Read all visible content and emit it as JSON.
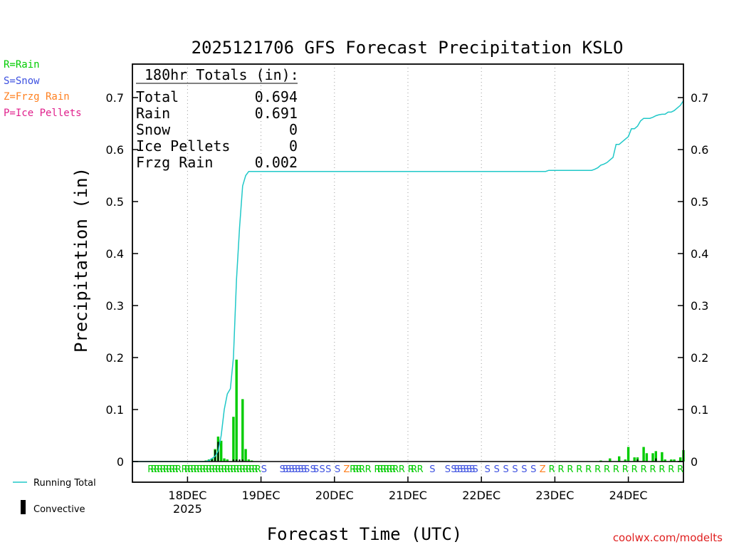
{
  "chart_data": {
    "type": "bar",
    "title": "2025121706 GFS Forecast Precipitation KSLO",
    "xlabel": "Forecast Time (UTC)",
    "ylabel": "Precipitation (in)",
    "ylim": [
      0,
      0.76
    ],
    "y_ticks": [
      "0",
      "0.1",
      "0.2",
      "0.3",
      "0.4",
      "0.5",
      "0.6",
      "0.7"
    ],
    "x_range_hours": [
      0,
      180
    ],
    "x_ticks": [
      {
        "hour": 18,
        "label": "18DEC",
        "sublabel": "2025"
      },
      {
        "hour": 42,
        "label": "19DEC",
        "sublabel": ""
      },
      {
        "hour": 66,
        "label": "20DEC",
        "sublabel": ""
      },
      {
        "hour": 90,
        "label": "21DEC",
        "sublabel": ""
      },
      {
        "hour": 114,
        "label": "22DEC",
        "sublabel": ""
      },
      {
        "hour": 138,
        "label": "23DEC",
        "sublabel": ""
      },
      {
        "hour": 162,
        "label": "24DEC",
        "sublabel": ""
      }
    ],
    "legend": {
      "types": [
        {
          "label": "R=Rain",
          "color": "#00cc00"
        },
        {
          "label": "S=Snow",
          "color": "#3c50e0"
        },
        {
          "label": "Z=Frzg Rain",
          "color": "#ff8020"
        },
        {
          "label": "P=Ice Pellets",
          "color": "#e0208c"
        }
      ],
      "running_total_label": "Running Total",
      "convective_label": "Convective"
    },
    "totals": {
      "heading": "180hr Totals (in):",
      "rows": [
        {
          "label": "Total",
          "value": "0.694"
        },
        {
          "label": "Rain",
          "value": "0.691"
        },
        {
          "label": "Snow",
          "value": "0"
        },
        {
          "label": "Ice Pellets",
          "value": "0"
        },
        {
          "label": "Frzg Rain",
          "value": "0.002"
        }
      ]
    },
    "precip_series": {
      "name": "3-hr precipitation",
      "color": "#00cc00",
      "hours": [
        24,
        25,
        26,
        27,
        28,
        29,
        30,
        31,
        33,
        34,
        36,
        37,
        38,
        39,
        161,
        164,
        167,
        170,
        173,
        176,
        179
      ],
      "values": [
        0.002,
        0.004,
        0.006,
        0.024,
        0.048,
        0.04,
        0.006,
        0.004,
        0.086,
        0.196,
        0.12,
        0.024,
        0.004,
        0.002,
        0.004,
        0.008,
        0.028,
        0.016,
        0.018,
        0.004,
        0.008
      ]
    },
    "late_bars": {
      "hours": [
        153,
        156,
        159,
        162,
        165,
        168,
        171,
        174,
        177,
        180
      ],
      "values": [
        0.002,
        0.006,
        0.01,
        0.028,
        0.008,
        0.016,
        0.02,
        0.004,
        0.004,
        0.022
      ]
    },
    "convective_series": {
      "name": "Convective",
      "color": "#000000",
      "hours": [
        26,
        27,
        28,
        33,
        34,
        35,
        36,
        165,
        171
      ],
      "values": [
        0.004,
        0.022,
        0.038,
        0.004,
        0.004,
        0.004,
        0.004,
        0.004,
        0.006
      ]
    },
    "running_total": {
      "name": "Running Total",
      "color": "#20c8c8",
      "hours": [
        0,
        24,
        25,
        26,
        27,
        28,
        29,
        30,
        31,
        32,
        33,
        34,
        35,
        36,
        37,
        38,
        42,
        66,
        90,
        114,
        135,
        136,
        150,
        151,
        152,
        153,
        154,
        155,
        156,
        157,
        158,
        159,
        160,
        161,
        162,
        163,
        164,
        165,
        166,
        167,
        168,
        169,
        170,
        171,
        172,
        173,
        174,
        175,
        176,
        177,
        178,
        179,
        180
      ],
      "values": [
        0,
        0,
        0.002,
        0.006,
        0.01,
        0.02,
        0.05,
        0.1,
        0.13,
        0.14,
        0.2,
        0.35,
        0.45,
        0.53,
        0.55,
        0.558,
        0.558,
        0.558,
        0.558,
        0.558,
        0.558,
        0.56,
        0.56,
        0.562,
        0.565,
        0.57,
        0.572,
        0.575,
        0.58,
        0.585,
        0.61,
        0.61,
        0.615,
        0.62,
        0.625,
        0.64,
        0.64,
        0.645,
        0.655,
        0.66,
        0.66,
        0.66,
        0.662,
        0.665,
        0.667,
        0.668,
        0.668,
        0.672,
        0.672,
        0.675,
        0.68,
        0.685,
        0.694
      ]
    },
    "ptype_markers": [
      {
        "hour": 6,
        "type": "R"
      },
      {
        "hour": 7,
        "type": "R"
      },
      {
        "hour": 8,
        "type": "R"
      },
      {
        "hour": 9,
        "type": "R"
      },
      {
        "hour": 10,
        "type": "R"
      },
      {
        "hour": 11,
        "type": "R"
      },
      {
        "hour": 12,
        "type": "R"
      },
      {
        "hour": 13,
        "type": "R"
      },
      {
        "hour": 14,
        "type": "R"
      },
      {
        "hour": 15,
        "type": "R"
      },
      {
        "hour": 17,
        "type": "R"
      },
      {
        "hour": 18,
        "type": "R"
      },
      {
        "hour": 19,
        "type": "R"
      },
      {
        "hour": 20,
        "type": "R"
      },
      {
        "hour": 21,
        "type": "R"
      },
      {
        "hour": 22,
        "type": "R"
      },
      {
        "hour": 23,
        "type": "R"
      },
      {
        "hour": 24,
        "type": "R"
      },
      {
        "hour": 25,
        "type": "R"
      },
      {
        "hour": 26,
        "type": "R"
      },
      {
        "hour": 27,
        "type": "R"
      },
      {
        "hour": 28,
        "type": "R"
      },
      {
        "hour": 29,
        "type": "R"
      },
      {
        "hour": 30,
        "type": "R"
      },
      {
        "hour": 31,
        "type": "R"
      },
      {
        "hour": 32,
        "type": "R"
      },
      {
        "hour": 33,
        "type": "R"
      },
      {
        "hour": 34,
        "type": "R"
      },
      {
        "hour": 35,
        "type": "R"
      },
      {
        "hour": 36,
        "type": "R"
      },
      {
        "hour": 37,
        "type": "R"
      },
      {
        "hour": 38,
        "type": "R"
      },
      {
        "hour": 39,
        "type": "R"
      },
      {
        "hour": 40,
        "type": "R"
      },
      {
        "hour": 41,
        "type": "R"
      },
      {
        "hour": 43,
        "type": "S"
      },
      {
        "hour": 49,
        "type": "S"
      },
      {
        "hour": 50,
        "type": "S"
      },
      {
        "hour": 51,
        "type": "S"
      },
      {
        "hour": 52,
        "type": "S"
      },
      {
        "hour": 53,
        "type": "S"
      },
      {
        "hour": 54,
        "type": "S"
      },
      {
        "hour": 55,
        "type": "S"
      },
      {
        "hour": 56,
        "type": "S"
      },
      {
        "hour": 57,
        "type": "S"
      },
      {
        "hour": 59,
        "type": "S"
      },
      {
        "hour": 60,
        "type": "S"
      },
      {
        "hour": 62,
        "type": "S"
      },
      {
        "hour": 64,
        "type": "S"
      },
      {
        "hour": 67,
        "type": "S"
      },
      {
        "hour": 70,
        "type": "Z"
      },
      {
        "hour": 72,
        "type": "R"
      },
      {
        "hour": 73,
        "type": "R"
      },
      {
        "hour": 74,
        "type": "R"
      },
      {
        "hour": 75,
        "type": "R"
      },
      {
        "hour": 77,
        "type": "R"
      },
      {
        "hour": 80,
        "type": "R"
      },
      {
        "hour": 81,
        "type": "R"
      },
      {
        "hour": 82,
        "type": "R"
      },
      {
        "hour": 83,
        "type": "R"
      },
      {
        "hour": 84,
        "type": "R"
      },
      {
        "hour": 85,
        "type": "R"
      },
      {
        "hour": 86,
        "type": "R"
      },
      {
        "hour": 88,
        "type": "R"
      },
      {
        "hour": 91,
        "type": "R"
      },
      {
        "hour": 92,
        "type": "R"
      },
      {
        "hour": 94,
        "type": "R"
      },
      {
        "hour": 98,
        "type": "S"
      },
      {
        "hour": 103,
        "type": "S"
      },
      {
        "hour": 105,
        "type": "S"
      },
      {
        "hour": 106,
        "type": "S"
      },
      {
        "hour": 107,
        "type": "S"
      },
      {
        "hour": 108,
        "type": "S"
      },
      {
        "hour": 109,
        "type": "S"
      },
      {
        "hour": 110,
        "type": "S"
      },
      {
        "hour": 111,
        "type": "S"
      },
      {
        "hour": 112,
        "type": "S"
      },
      {
        "hour": 116,
        "type": "S"
      },
      {
        "hour": 119,
        "type": "S"
      },
      {
        "hour": 122,
        "type": "S"
      },
      {
        "hour": 125,
        "type": "S"
      },
      {
        "hour": 128,
        "type": "S"
      },
      {
        "hour": 131,
        "type": "S"
      },
      {
        "hour": 134,
        "type": "Z"
      },
      {
        "hour": 137,
        "type": "R"
      },
      {
        "hour": 140,
        "type": "R"
      },
      {
        "hour": 143,
        "type": "R"
      },
      {
        "hour": 146,
        "type": "R"
      },
      {
        "hour": 149,
        "type": "R"
      },
      {
        "hour": 152,
        "type": "R"
      },
      {
        "hour": 155,
        "type": "R"
      },
      {
        "hour": 158,
        "type": "R"
      },
      {
        "hour": 161,
        "type": "R"
      },
      {
        "hour": 164,
        "type": "R"
      },
      {
        "hour": 167,
        "type": "R"
      },
      {
        "hour": 170,
        "type": "R"
      },
      {
        "hour": 173,
        "type": "R"
      },
      {
        "hour": 176,
        "type": "R"
      },
      {
        "hour": 179,
        "type": "R"
      }
    ],
    "ptype_colors": {
      "R": "#00cc00",
      "S": "#3c50e0",
      "Z": "#ff8020",
      "P": "#e0208c"
    },
    "credit": "coolwx.com/modelts"
  }
}
